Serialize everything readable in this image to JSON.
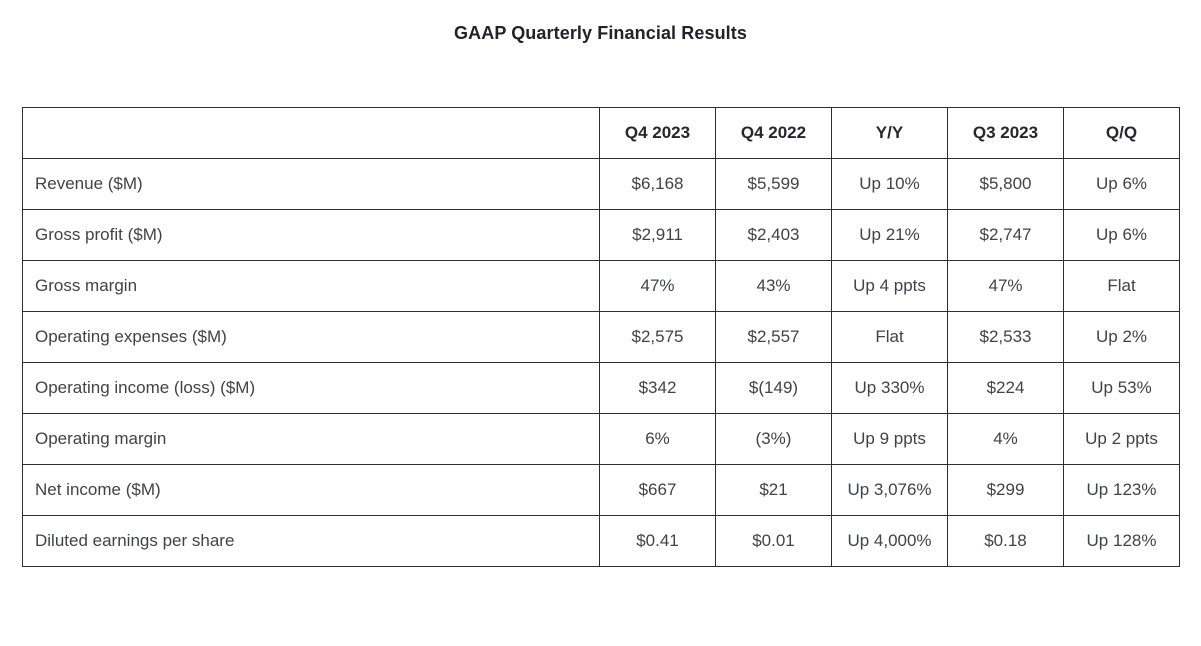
{
  "page": {
    "title": "GAAP Quarterly Financial Results"
  },
  "colors": {
    "background": "#ffffff",
    "border": "#2f2f2f",
    "body_text": "#42424a",
    "heading_text": "#22222c"
  },
  "table": {
    "columns": [
      "",
      "Q4 2023",
      "Q4 2022",
      "Y/Y",
      "Q3 2023",
      "Q/Q"
    ],
    "rows": [
      {
        "label": "Revenue ($M)",
        "values": [
          "$6,168",
          "$5,599",
          "Up 10%",
          "$5,800",
          "Up 6%"
        ]
      },
      {
        "label": "Gross profit ($M)",
        "values": [
          "$2,911",
          "$2,403",
          "Up 21%",
          "$2,747",
          "Up 6%"
        ]
      },
      {
        "label": "Gross margin",
        "values": [
          "47%",
          "43%",
          "Up 4 ppts",
          "47%",
          "Flat"
        ]
      },
      {
        "label": "Operating expenses ($M)",
        "values": [
          "$2,575",
          "$2,557",
          "Flat",
          "$2,533",
          "Up 2%"
        ]
      },
      {
        "label": "Operating income (loss) ($M)",
        "values": [
          "$342",
          "$(149)",
          "Up 330%",
          "$224",
          "Up 53%"
        ]
      },
      {
        "label": "Operating margin",
        "values": [
          "6%",
          "(3%)",
          "Up 9 ppts",
          "4%",
          "Up 2 ppts"
        ]
      },
      {
        "label": "Net income ($M)",
        "values": [
          "$667",
          "$21",
          "Up 3,076%",
          "$299",
          "Up 123%"
        ]
      },
      {
        "label": "Diluted earnings per share",
        "values": [
          "$0.41",
          "$0.01",
          "Up 4,000%",
          "$0.18",
          "Up 128%"
        ]
      }
    ]
  },
  "chart_data": {
    "type": "table",
    "title": "GAAP Quarterly Financial Results",
    "columns": [
      "",
      "Q4 2023",
      "Q4 2022",
      "Y/Y",
      "Q3 2023",
      "Q/Q"
    ],
    "rows": [
      [
        "Revenue ($M)",
        "$6,168",
        "$5,599",
        "Up 10%",
        "$5,800",
        "Up 6%"
      ],
      [
        "Gross profit ($M)",
        "$2,911",
        "$2,403",
        "Up 21%",
        "$2,747",
        "Up 6%"
      ],
      [
        "Gross margin",
        "47%",
        "43%",
        "Up 4 ppts",
        "47%",
        "Flat"
      ],
      [
        "Operating expenses ($M)",
        "$2,575",
        "$2,557",
        "Flat",
        "$2,533",
        "Up 2%"
      ],
      [
        "Operating income (loss) ($M)",
        "$342",
        "$(149)",
        "Up 330%",
        "$224",
        "Up 53%"
      ],
      [
        "Operating margin",
        "6%",
        "(3%)",
        "Up 9 ppts",
        "4%",
        "Up 2 ppts"
      ],
      [
        "Net income ($M)",
        "$667",
        "$21",
        "Up 3,076%",
        "$299",
        "Up 123%"
      ],
      [
        "Diluted earnings per share",
        "$0.41",
        "$0.01",
        "Up 4,000%",
        "$0.18",
        "Up 128%"
      ]
    ]
  }
}
